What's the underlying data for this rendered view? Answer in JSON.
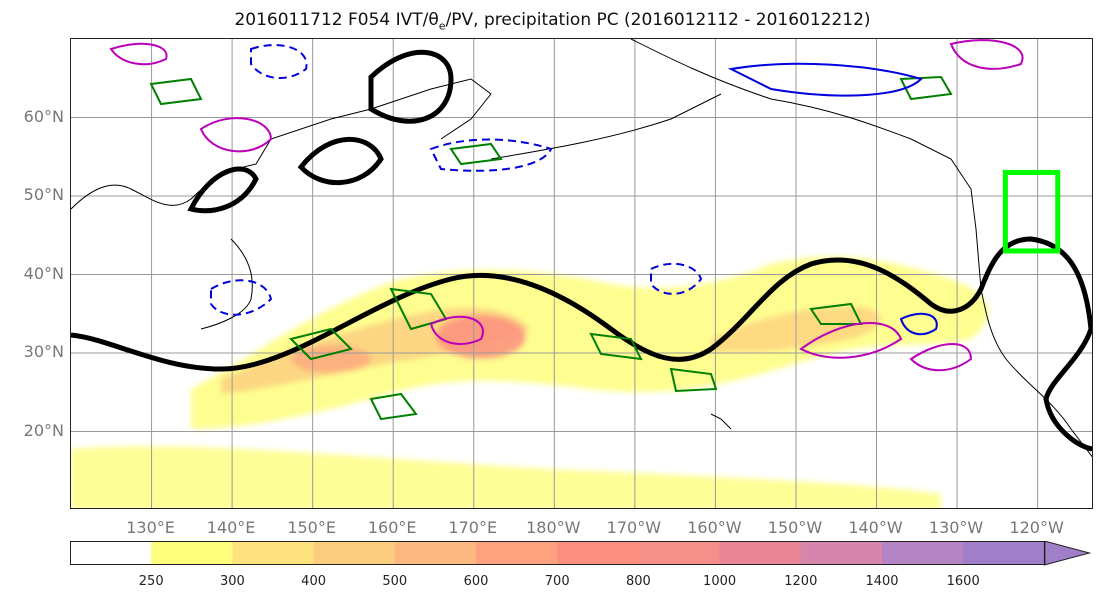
{
  "title": {
    "prefix": "2016011712 F054 IVT/θ",
    "sub": "e",
    "suffix": "/PV, precipitation PC (2016012112 - 2016012212)"
  },
  "map": {
    "projection": "cylindrical",
    "extent": {
      "lon_min": 120,
      "lon_max": 247,
      "lat_min": 10,
      "lat_max": 70
    },
    "lat_labels": [
      "60°N",
      "50°N",
      "40°N",
      "30°N",
      "20°N"
    ],
    "lon_labels": [
      "130°E",
      "140°E",
      "150°E",
      "160°E",
      "170°E",
      "180°W",
      "170°W",
      "160°W",
      "150°W",
      "140°W",
      "130°W",
      "120°W"
    ],
    "gridlines": true,
    "colors": {
      "coast": "#000000",
      "jet_contour": "#000000",
      "theta_e_contour": "#008000",
      "pv_contour": "#bb00bb",
      "dashed_contour": "#0000dd",
      "highlight_box": "#00ff00"
    },
    "highlight_box": {
      "lon_min": 236,
      "lon_max": 242.5,
      "lat_min": 43,
      "lat_max": 53
    }
  },
  "colorbar": {
    "ticks": [
      "250",
      "300",
      "400",
      "500",
      "600",
      "700",
      "800",
      "1000",
      "1200",
      "1400",
      "1600"
    ],
    "colors": [
      "#ffffff",
      "#fefe7c",
      "#fde27d",
      "#fdcd7f",
      "#fdb87f",
      "#fda17e",
      "#fc8f7f",
      "#f48f8a",
      "#e88696",
      "#d686ac",
      "#b484c5",
      "#a07ec9"
    ],
    "extend": "max"
  }
}
